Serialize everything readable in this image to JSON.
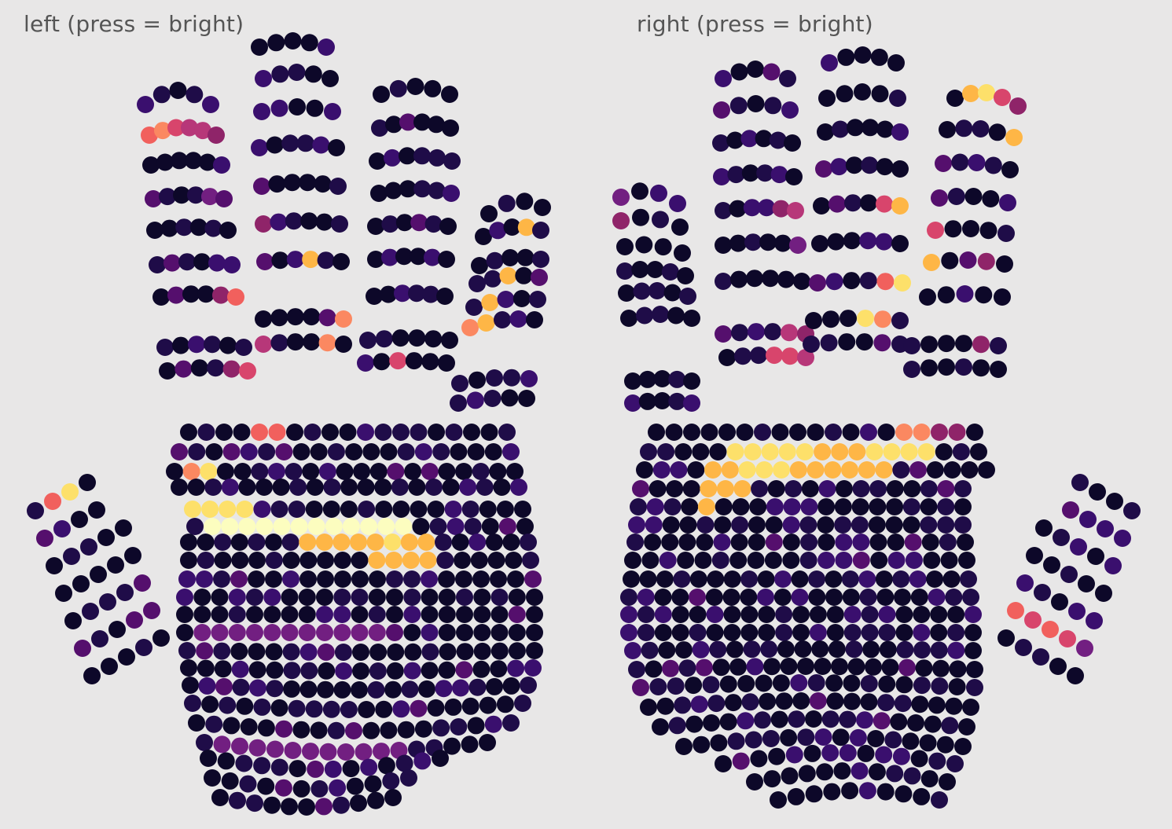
{
  "hands": {
    "left": {
      "label": "left (press = bright)"
    },
    "right": {
      "label": "right (press = bright)"
    }
  },
  "colormap": [
    "#0d0829",
    "#1f0c48",
    "#3a0f6e",
    "#550f6d",
    "#721f81",
    "#8f2469",
    "#b73779",
    "#d8456c",
    "#f1605d",
    "#fb8861",
    "#feb646",
    "#fde06a",
    "#fcfdbf"
  ],
  "background": "#e8e7e7"
}
